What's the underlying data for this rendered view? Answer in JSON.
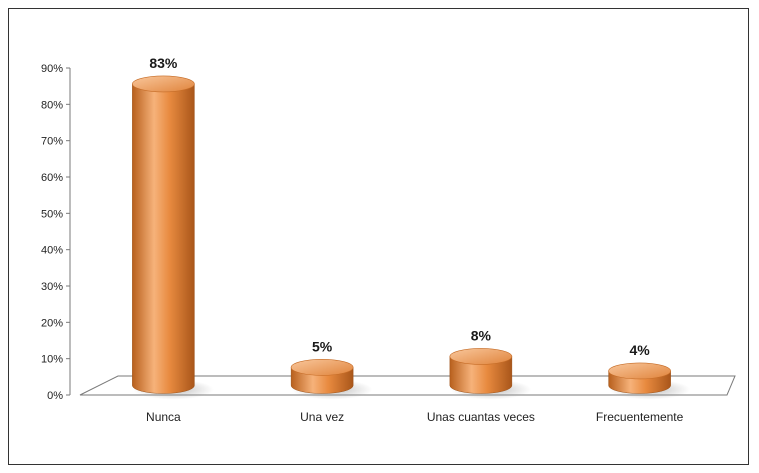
{
  "chart_data": {
    "type": "bar",
    "categories": [
      "Nunca",
      "Una vez",
      "Unas cuantas veces",
      "Frecuentemente"
    ],
    "values": [
      83,
      5,
      8,
      4
    ],
    "data_labels": [
      "83%",
      "5%",
      "8%",
      "4%"
    ],
    "title": "",
    "xlabel": "",
    "ylabel": "",
    "ylim": [
      0,
      90
    ],
    "yticks": [
      0,
      10,
      20,
      30,
      40,
      50,
      60,
      70,
      80,
      90
    ],
    "ytick_labels": [
      "0%",
      "10%",
      "20%",
      "30%",
      "40%",
      "50%",
      "60%",
      "70%",
      "80%",
      "90%"
    ],
    "grid": false,
    "legend": "none",
    "bar_style": "3d-cylinder",
    "colors": {
      "bar_light": "#f6b27a",
      "bar_mid": "#e88a3f",
      "bar_dark": "#b8601d",
      "floor": "#ffffff",
      "axis": "#7a7a7a"
    }
  }
}
